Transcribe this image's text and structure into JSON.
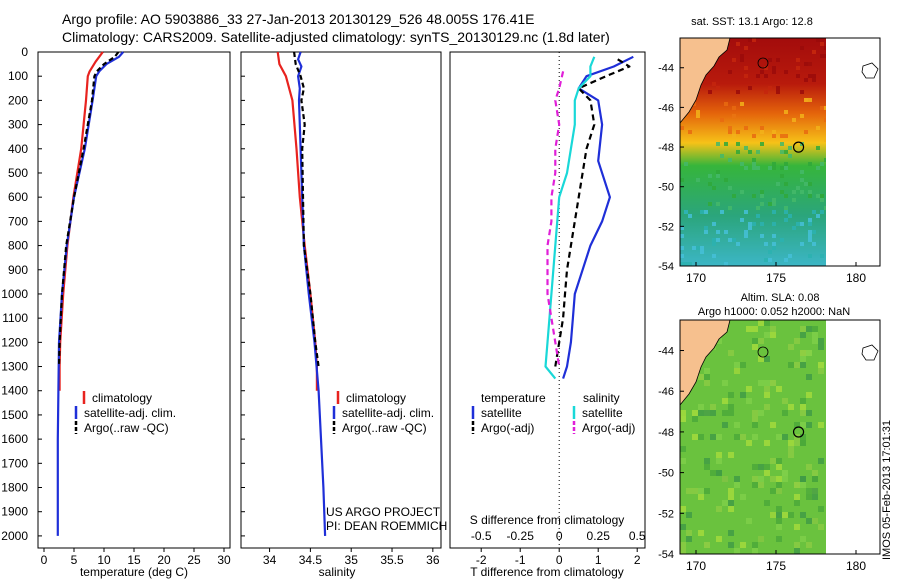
{
  "header": {
    "line1": "Argo profile: AO 5903886_33 27-Jan-2013 20130129_526 48.005S 176.41E",
    "line2": "Climatology: CARS2009. Satellite-adjusted climatology: synTS_20130129.nc (1.8d later)"
  },
  "credit": {
    "line1": "US ARGO PROJECT",
    "line2": "PI: DEAN ROEMMICH"
  },
  "stamp": "IMOS 05-Feb-2013 17:01:31",
  "colors": {
    "climatology": "#e8231f",
    "satellite": "#1f2fd8",
    "argo": "#000000",
    "sal_satellite": "#19d8d8",
    "sal_argo": "#e01fd8",
    "land": "#f6c08e"
  },
  "chart_data": [
    {
      "type": "line",
      "panel": "temperature",
      "xlabel": "temperature (deg C)",
      "ylabel": "",
      "xlim": [
        -1,
        31
      ],
      "ylim": [
        2050,
        0
      ],
      "xticks": [
        0,
        5,
        10,
        15,
        20,
        25,
        30
      ],
      "yticks": [
        0,
        100,
        200,
        300,
        400,
        500,
        600,
        700,
        800,
        900,
        1000,
        1100,
        1200,
        1300,
        1400,
        1500,
        1600,
        1700,
        1800,
        1900,
        2000
      ],
      "legend": [
        "climatology",
        "satellite-adj. clim.",
        "Argo(..raw -QC)"
      ],
      "series": [
        {
          "name": "climatology",
          "color": "#e8231f",
          "dash": "",
          "depth": [
            0,
            40,
            80,
            100,
            200,
            400,
            600,
            800,
            1000,
            1200,
            1300,
            1400
          ],
          "values": [
            9.8,
            8.6,
            7.6,
            7.3,
            7.0,
            6.2,
            4.9,
            3.9,
            3.2,
            2.7,
            2.6,
            2.6
          ]
        },
        {
          "name": "satellite-adj. clim.",
          "color": "#1f2fd8",
          "dash": "",
          "depth": [
            0,
            20,
            50,
            80,
            100,
            200,
            400,
            600,
            800,
            1000,
            1200,
            1400,
            1600,
            1800,
            2000
          ],
          "values": [
            13.2,
            12.5,
            10.4,
            9.2,
            8.7,
            8.1,
            6.8,
            5.0,
            3.8,
            3.0,
            2.5,
            2.4,
            2.3,
            2.3,
            2.3
          ]
        },
        {
          "name": "Argo(..raw -QC)",
          "color": "#000000",
          "dash": "5,3",
          "depth": [
            0,
            20,
            50,
            80,
            100,
            200,
            400,
            600,
            800,
            1000,
            1200,
            1300
          ],
          "values": [
            12.4,
            11.8,
            10.0,
            8.8,
            8.4,
            8.0,
            6.6,
            5.0,
            3.7,
            3.0,
            2.6,
            2.5
          ]
        }
      ]
    },
    {
      "type": "line",
      "panel": "salinity",
      "xlabel": "salinity",
      "ylabel": "",
      "xlim": [
        33.65,
        36.1
      ],
      "ylim": [
        2050,
        0
      ],
      "xticks": [
        34,
        34.5,
        35,
        35.5,
        36
      ],
      "yticks": [
        0,
        100,
        200,
        300,
        400,
        500,
        600,
        700,
        800,
        900,
        1000,
        1100,
        1200,
        1300,
        1400,
        1500,
        1600,
        1700,
        1800,
        1900,
        2000
      ],
      "legend": [
        "climatology",
        "satellite-adj. clim.",
        "Argo(..raw -QC)"
      ],
      "series": [
        {
          "name": "climatology",
          "color": "#e8231f",
          "dash": "",
          "depth": [
            0,
            50,
            100,
            200,
            400,
            600,
            800,
            1000,
            1200,
            1300,
            1400
          ],
          "values": [
            34.1,
            34.12,
            34.2,
            34.28,
            34.33,
            34.37,
            34.43,
            34.5,
            34.56,
            34.58,
            34.58
          ]
        },
        {
          "name": "satellite-adj. clim.",
          "color": "#1f2fd8",
          "dash": "",
          "depth": [
            0,
            30,
            60,
            100,
            150,
            200,
            400,
            600,
            800,
            1000,
            1200,
            1400,
            1600,
            1800,
            2000
          ],
          "values": [
            34.38,
            34.35,
            34.39,
            34.35,
            34.37,
            34.36,
            34.38,
            34.4,
            34.42,
            34.48,
            34.55,
            34.6,
            34.63,
            34.66,
            34.68
          ]
        },
        {
          "name": "Argo(..raw -QC)",
          "color": "#000000",
          "dash": "5,3",
          "depth": [
            0,
            50,
            100,
            150,
            200,
            300,
            400,
            600,
            800,
            1000,
            1200,
            1300
          ],
          "values": [
            34.3,
            34.32,
            34.38,
            34.42,
            34.39,
            34.43,
            34.4,
            34.41,
            34.42,
            34.5,
            34.56,
            34.6
          ]
        }
      ]
    },
    {
      "type": "line",
      "panel": "differences",
      "xlabel": "T difference from climatology",
      "xlabel_top": "S difference from climatology",
      "ylabel": "",
      "xlim": [
        -2.8,
        2.2
      ],
      "ylim": [
        2050,
        0
      ],
      "xticks": [
        -2,
        -1,
        0,
        1,
        2
      ],
      "xticks_top": [
        "-0.5",
        "-0.25",
        "0",
        "0.25",
        "0.5"
      ],
      "zero_line": true,
      "legend_temperature": {
        "title": "temperature",
        "items": [
          "satellite",
          "Argo(-adj)"
        ]
      },
      "legend_salinity": {
        "title": "salinity",
        "items": [
          "satellite",
          "Argo(-adj)"
        ]
      },
      "series": [
        {
          "name": "satellite",
          "group": "temperature",
          "color": "#1f2fd8",
          "dash": "",
          "depth": [
            20,
            60,
            100,
            150,
            200,
            300,
            450,
            600,
            700,
            800,
            900,
            1000,
            1100,
            1200,
            1300,
            1350
          ],
          "values": [
            1.9,
            1.4,
            0.7,
            0.5,
            1.0,
            1.1,
            1.0,
            1.3,
            1.1,
            0.8,
            0.6,
            0.4,
            0.35,
            0.3,
            0.2,
            0.1
          ]
        },
        {
          "name": "Argo(-adj)",
          "group": "temperature",
          "color": "#000000",
          "dash": "6,4",
          "depth": [
            30,
            60,
            100,
            150,
            200,
            300,
            400,
            500,
            600,
            700,
            800,
            900,
            1000,
            1100,
            1200,
            1300
          ],
          "values": [
            1.5,
            1.8,
            1.2,
            0.5,
            0.8,
            0.9,
            0.7,
            0.6,
            0.5,
            0.4,
            0.3,
            0.2,
            0.15,
            0.1,
            0.0,
            -0.1
          ]
        },
        {
          "name": "satellite",
          "group": "salinity",
          "color": "#19d8d8",
          "dash": "",
          "depth": [
            20,
            60,
            100,
            150,
            200,
            300,
            400,
            500,
            600,
            800,
            1000,
            1200,
            1300,
            1350
          ],
          "values": [
            0.9,
            0.8,
            0.8,
            0.5,
            0.4,
            0.4,
            0.3,
            0.2,
            0.0,
            -0.1,
            -0.2,
            -0.3,
            -0.35,
            -0.1
          ]
        },
        {
          "name": "Argo(-adj)",
          "group": "salinity",
          "color": "#e01fd8",
          "dash": "6,4",
          "depth": [
            80,
            150,
            200,
            300,
            400,
            500,
            600,
            700,
            800,
            900,
            1000,
            1100,
            1200,
            1300
          ],
          "values": [
            0.1,
            0.0,
            -0.1,
            0.0,
            -0.1,
            -0.1,
            -0.2,
            -0.2,
            -0.3,
            -0.3,
            -0.3,
            -0.2,
            -0.1,
            0.0
          ]
        }
      ]
    },
    {
      "type": "heatmap",
      "panel": "sst-map",
      "title": "sat. SST: 13.1  Argo: 12.8",
      "xlim": [
        169,
        181.5
      ],
      "ylim": [
        -54,
        -42.5
      ],
      "xticks": [
        170,
        175,
        180
      ],
      "yticks": [
        -44,
        -46,
        -48,
        -50,
        -52,
        -54
      ],
      "argo_position": [
        176.41,
        -48.005
      ]
    },
    {
      "type": "heatmap",
      "panel": "sla-map",
      "title_line1": "Altim. SLA: 0.08",
      "title_line2": "Argo h1000: 0.052 h2000: NaN",
      "xlim": [
        169,
        181.5
      ],
      "ylim": [
        -54,
        -42.5
      ],
      "xticks": [
        170,
        175,
        180
      ],
      "yticks": [
        -44,
        -46,
        -48,
        -50,
        -52,
        -54
      ],
      "argo_position": [
        176.41,
        -48.005
      ]
    }
  ]
}
